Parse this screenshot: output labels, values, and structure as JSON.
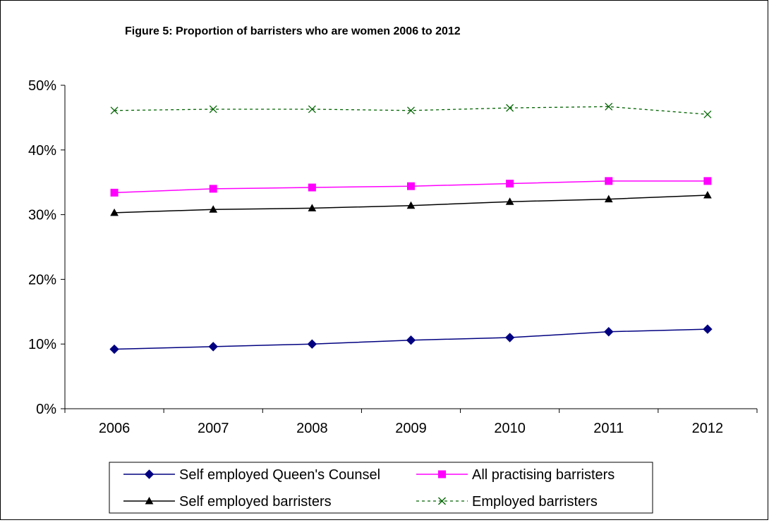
{
  "chart_data": {
    "type": "line",
    "title": "Figure 5: Proportion of barristers who are women 2006 to 2012",
    "xlabel": "",
    "ylabel": "",
    "categories": [
      "2006",
      "2007",
      "2008",
      "2009",
      "2010",
      "2011",
      "2012"
    ],
    "ylim": [
      0,
      50
    ],
    "yticks": [
      "0%",
      "10%",
      "20%",
      "30%",
      "40%",
      "50%"
    ],
    "grid": false,
    "legend_position": "bottom",
    "series": [
      {
        "name": "Self employed Queen's Counsel",
        "values": [
          9.2,
          9.6,
          10.0,
          10.6,
          11.0,
          11.9,
          12.3
        ],
        "color": "#000080",
        "marker": "diamond",
        "line": "solid"
      },
      {
        "name": "All practising barristers",
        "values": [
          33.4,
          34.0,
          34.2,
          34.4,
          34.8,
          35.2,
          35.2
        ],
        "color": "#FF00FF",
        "marker": "square",
        "line": "solid"
      },
      {
        "name": "Self employed barristers",
        "values": [
          30.3,
          30.8,
          31.0,
          31.4,
          32.0,
          32.4,
          33.0
        ],
        "color": "#000000",
        "marker": "triangle",
        "line": "solid"
      },
      {
        "name": "Employed barristers",
        "values": [
          46.1,
          46.3,
          46.3,
          46.1,
          46.5,
          46.7,
          45.5
        ],
        "color": "#006400",
        "marker": "x",
        "line": "dotted"
      }
    ]
  }
}
